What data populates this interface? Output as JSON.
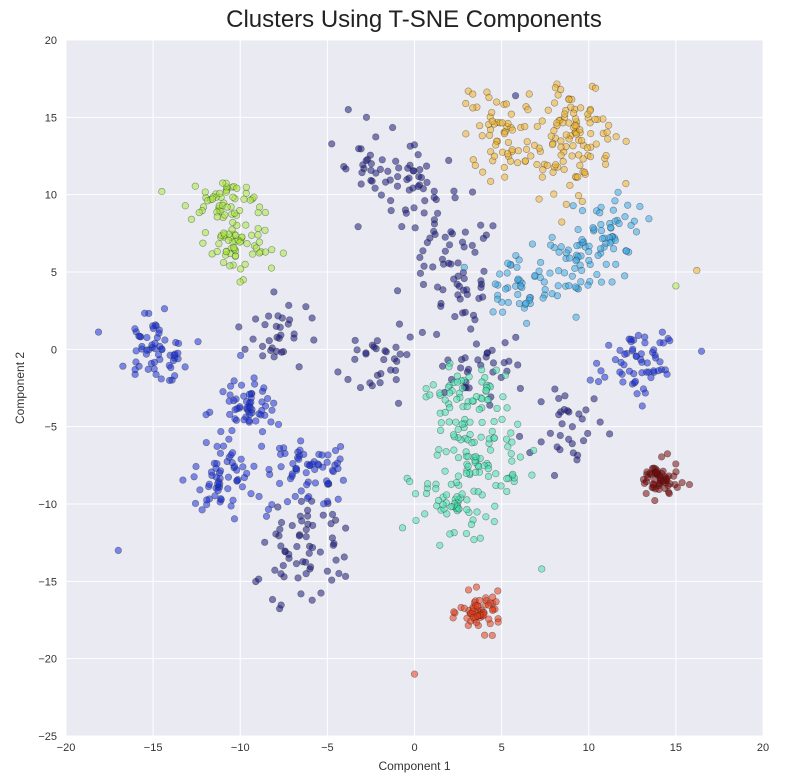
{
  "chart_data": {
    "type": "scatter",
    "title": "Clusters Using T-SNE Components",
    "xlabel": "Component 1",
    "ylabel": "Component 2",
    "xlim": [
      -20,
      20
    ],
    "ylim": [
      -25,
      20
    ],
    "xticks": [
      "−20",
      "−15",
      "−10",
      "−5",
      "0",
      "5",
      "10",
      "15",
      "20"
    ],
    "yticks": [
      "20",
      "15",
      "10",
      "5",
      "0",
      "−5",
      "−10",
      "−15",
      "−20",
      "−25"
    ],
    "grid": true,
    "background": "#eaeaf2",
    "clusters": [
      {
        "color": "#1a1a80",
        "centers": [
          [
            -8,
            1
          ],
          [
            -6,
            -11.5
          ],
          [
            -2,
            12
          ],
          [
            0,
            10.5
          ],
          [
            2.5,
            3.5
          ],
          [
            8.5,
            -5
          ],
          [
            4,
            -1
          ],
          [
            -2,
            -1
          ],
          [
            2,
            7
          ],
          [
            -6.5,
            -14
          ]
        ],
        "spread": 1.2,
        "count": 320
      },
      {
        "color": "#1c32d8",
        "centers": [
          [
            -15,
            0
          ],
          [
            -11,
            -8.5
          ],
          [
            -9.5,
            -4
          ],
          [
            13,
            -1
          ],
          [
            -6,
            -8
          ]
        ],
        "spread": 1.1,
        "count": 300
      },
      {
        "color": "#3aaae8",
        "centers": [
          [
            9.5,
            5.5
          ],
          [
            11,
            8
          ],
          [
            6,
            4
          ]
        ],
        "spread": 1.2,
        "count": 140
      },
      {
        "color": "#47e4b0",
        "centers": [
          [
            2,
            -10
          ],
          [
            4,
            -7
          ],
          [
            3,
            -3
          ]
        ],
        "spread": 1.2,
        "count": 190
      },
      {
        "color": "#f0b22a",
        "centers": [
          [
            5,
            14
          ],
          [
            9,
            12
          ],
          [
            9,
            15
          ]
        ],
        "spread": 1.2,
        "count": 170
      },
      {
        "color": "#a8ea3c",
        "centers": [
          [
            -11,
            9.5
          ],
          [
            -10,
            6.5
          ]
        ],
        "spread": 0.9,
        "count": 110
      },
      {
        "color": "#e83c18",
        "centers": [
          [
            3.8,
            -17
          ]
        ],
        "spread": 0.6,
        "count": 60
      },
      {
        "color": "#7a0a0a",
        "centers": [
          [
            14,
            -8.5
          ]
        ],
        "spread": 0.6,
        "count": 60
      }
    ],
    "outliers": [
      {
        "x": -17,
        "y": -13,
        "color": "#1c32d8"
      },
      {
        "x": 0,
        "y": -21,
        "color": "#e83c18"
      },
      {
        "x": 16.2,
        "y": 5.1,
        "color": "#f0b22a"
      },
      {
        "x": 15,
        "y": 4.1,
        "color": "#a8ea3c"
      },
      {
        "x": -14.5,
        "y": 10.2,
        "color": "#a8ea3c"
      },
      {
        "x": 7.3,
        "y": -14.2,
        "color": "#47e4b0"
      },
      {
        "x": -3.8,
        "y": 15.5,
        "color": "#1a1a80"
      },
      {
        "x": 5.8,
        "y": 16.4,
        "color": "#1a1a80"
      }
    ]
  }
}
